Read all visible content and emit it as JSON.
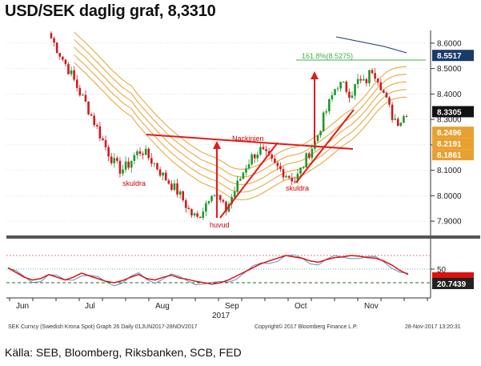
{
  "title": "USD/SEK daglig graf, 8,3310",
  "source": "Källa: SEB, Bloomberg, Riksbanken, SCB, FED",
  "footer": {
    "left": "SEK Curncy (Swedish Krona Spot) Graph 26  Daily 01JUN2017-28NOV2017",
    "center": "Copyright© 2017 Bloomberg Finance L.P.",
    "right": "28-Nov-2017 13:20:31"
  },
  "chart_data": [
    {
      "type": "candlestick",
      "ylim": [
        7.85,
        8.65
      ],
      "y_ticks": [
        "8.6000",
        "8.5000",
        "8.4000",
        "8.3000",
        "8.2000",
        "8.1000",
        "8.0000",
        "7.9000"
      ],
      "months": [
        "Jun",
        "Jul",
        "Aug",
        "Sep",
        "Oct",
        "Nov"
      ],
      "year_label": "2017",
      "price_path": [
        8.62,
        8.57,
        8.52,
        8.47,
        8.41,
        8.36,
        8.3,
        8.24,
        8.18,
        8.13,
        8.1,
        8.12,
        8.16,
        8.18,
        8.15,
        8.12,
        8.08,
        8.05,
        8.02,
        7.98,
        7.93,
        7.91,
        7.96,
        8.02,
        7.99,
        7.94,
        8.0,
        8.06,
        8.12,
        8.16,
        8.18,
        8.15,
        8.12,
        8.1,
        8.08,
        8.06,
        8.11,
        8.17,
        8.22,
        8.3,
        8.37,
        8.44,
        8.43,
        8.4,
        8.45,
        8.44,
        8.5,
        8.46,
        8.38,
        8.31,
        8.29,
        8.33
      ],
      "value_tags": [
        {
          "text": "8.5517",
          "value": 8.5517,
          "color": "#1a3a6b"
        },
        {
          "text": "8.3305",
          "value": 8.3305,
          "color": "#111111"
        },
        {
          "text": "8.2496",
          "value": 8.2496,
          "color": "#e8a030"
        },
        {
          "text": "8.2191",
          "value": 8.2191,
          "color": "#e8a030"
        },
        {
          "text": "8.1861",
          "value": 8.1861,
          "color": "#e8a030"
        }
      ],
      "annotations": [
        "Nackinjen",
        "skuldra",
        "huvud",
        "skuldra",
        "161.8%(8.5275)"
      ]
    },
    {
      "type": "line",
      "y_ticks": [
        "50"
      ],
      "value_tags": [
        {
          "text": "20.7439",
          "color": "#222222"
        }
      ]
    }
  ]
}
